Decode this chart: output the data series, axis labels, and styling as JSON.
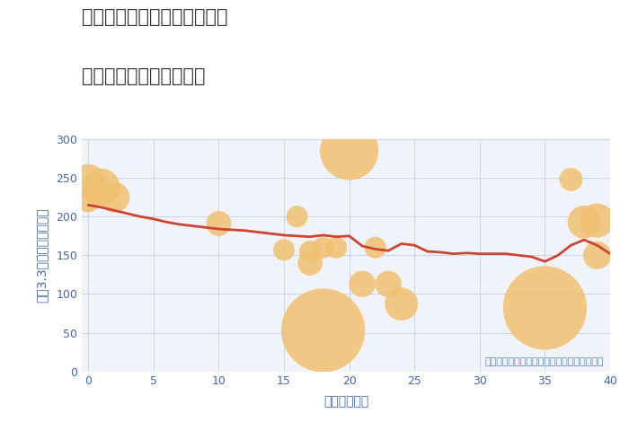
{
  "title_line1": "神奈川県川崎市高津区久本の",
  "title_line2": "築年数別中古戸建て価格",
  "xlabel": "築年数（年）",
  "ylabel": "坪（3.3㎡）単価（万円）",
  "annotation": "円の大きさは、取引のあった物件面積を示す",
  "xlim": [
    -0.5,
    40
  ],
  "ylim": [
    0,
    300
  ],
  "xticks": [
    0,
    5,
    10,
    15,
    20,
    25,
    30,
    35,
    40
  ],
  "yticks": [
    0,
    50,
    100,
    150,
    200,
    250,
    300
  ],
  "line_x": [
    0,
    1,
    2,
    3,
    4,
    5,
    6,
    7,
    8,
    9,
    10,
    11,
    12,
    13,
    14,
    15,
    16,
    17,
    18,
    19,
    20,
    21,
    22,
    23,
    24,
    25,
    26,
    27,
    28,
    29,
    30,
    31,
    32,
    33,
    34,
    35,
    36,
    37,
    38,
    39,
    40
  ],
  "line_y": [
    215,
    212,
    208,
    204,
    200,
    197,
    193,
    190,
    188,
    186,
    184,
    183,
    182,
    180,
    178,
    176,
    175,
    174,
    176,
    174,
    175,
    162,
    158,
    156,
    165,
    163,
    155,
    154,
    152,
    153,
    152,
    152,
    152,
    150,
    148,
    142,
    150,
    163,
    170,
    163,
    152
  ],
  "scatter_x": [
    0,
    0,
    1,
    2,
    10,
    15,
    16,
    17,
    17,
    18,
    18,
    19,
    20,
    21,
    22,
    23,
    24,
    35,
    37,
    38,
    39,
    39
  ],
  "scatter_y": [
    245,
    222,
    238,
    225,
    191,
    157,
    200,
    155,
    140,
    160,
    53,
    160,
    285,
    113,
    160,
    113,
    87,
    82,
    248,
    193,
    150,
    195
  ],
  "scatter_area": [
    800,
    400,
    900,
    600,
    400,
    300,
    300,
    300,
    400,
    300,
    4500,
    300,
    2200,
    450,
    300,
    450,
    700,
    4500,
    350,
    700,
    500,
    750
  ],
  "scatter_color": "#f0c070",
  "scatter_alpha": 0.85,
  "line_color": "#cc4433",
  "line_width": 2.0,
  "bg_color": "#f0f4fa",
  "grid_color": "#c8d4e8",
  "title_color": "#333333",
  "tick_color": "#4466aa",
  "label_color": "#4466aa",
  "annotation_color": "#5588aa",
  "title_fontsize": 15,
  "label_fontsize": 10,
  "tick_fontsize": 9,
  "annotation_fontsize": 8
}
